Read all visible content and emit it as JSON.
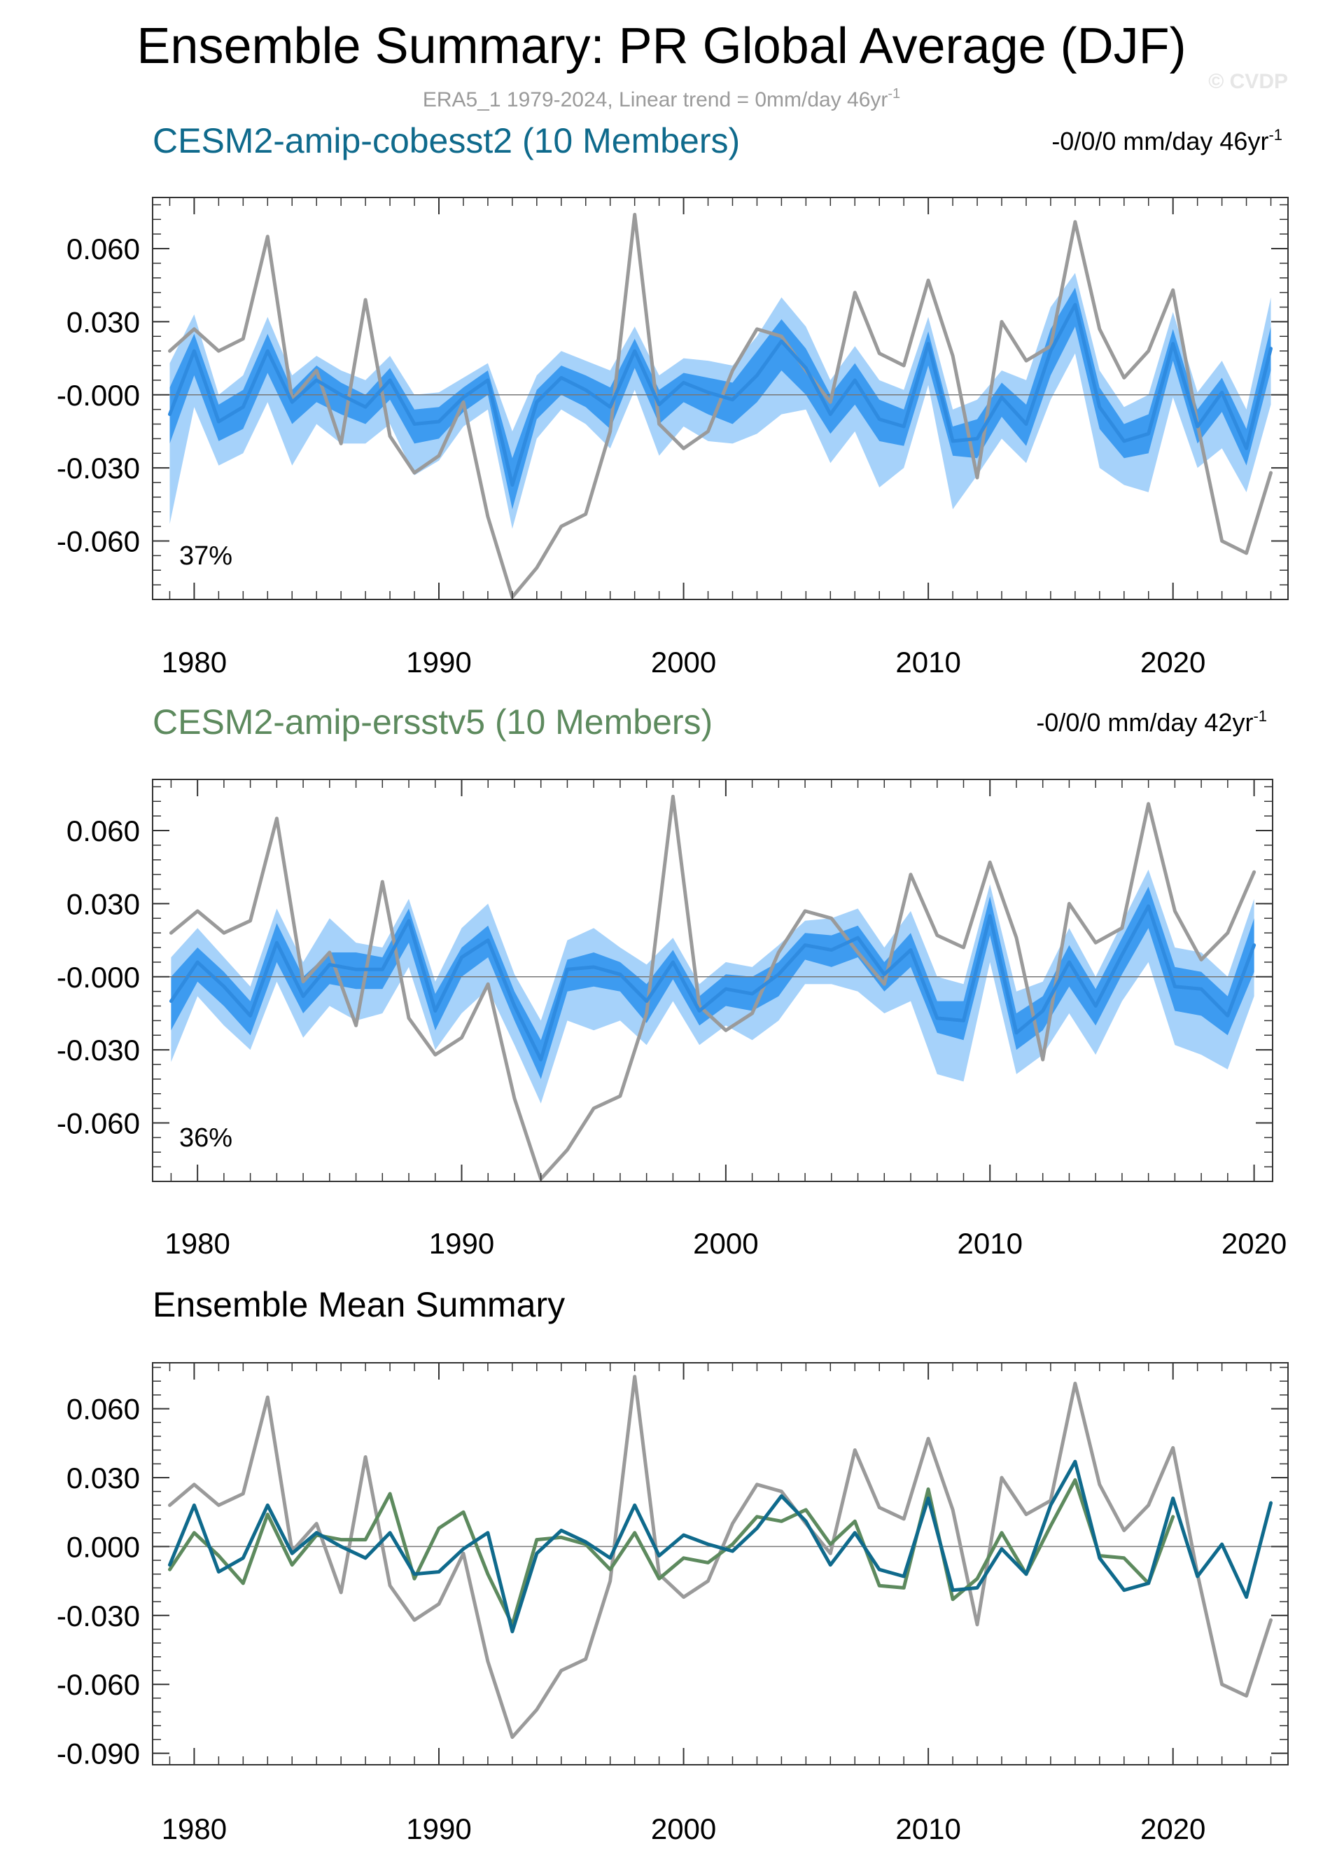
{
  "title": "Ensemble Summary: PR Global Average (DJF)",
  "subtitle": "ERA5_1 1979-2024, Linear trend = 0mm/day 46yr",
  "subtitle_sup": "-1",
  "watermark": "© CVDP",
  "colors": {
    "obs": "#9a9a9a",
    "ens_mean": "#2f8be0",
    "band_inner": "#3d9bf0",
    "band_outer": "#a6d2fa",
    "model1": "#0f6a8c",
    "model2": "#5d8a5e",
    "zero_line": "#777777",
    "axis": "#333333"
  },
  "chart_data": [
    {
      "type": "line",
      "panel": "ensemble",
      "title": "CESM2-amip-cobesst2 (10 Members)",
      "title_color": "#0f6a8c",
      "trend_label": "-0/0/0 mm/day 46yr",
      "trend_sup": "-1",
      "percentile_label": "37%",
      "ylim": [
        -0.084,
        0.081
      ],
      "yticks": [
        0.06,
        0.03,
        0.0,
        -0.03,
        -0.06
      ],
      "ytick_labels": [
        "0.060",
        "0.030",
        "-0.000",
        "-0.030",
        "-0.060"
      ],
      "xlim": [
        1978.3,
        2024.7
      ],
      "xticks": [
        1980,
        1990,
        2000,
        2010,
        2020
      ],
      "xtick_labels": [
        "1980",
        "1990",
        "2000",
        "2010",
        "2020"
      ],
      "x": [
        1979,
        1980,
        1981,
        1982,
        1983,
        1984,
        1985,
        1986,
        1987,
        1988,
        1989,
        1990,
        1991,
        1992,
        1993,
        1994,
        1995,
        1996,
        1997,
        1998,
        1999,
        2000,
        2001,
        2002,
        2003,
        2004,
        2005,
        2006,
        2007,
        2008,
        2009,
        2010,
        2011,
        2012,
        2013,
        2014,
        2015,
        2016,
        2017,
        2018,
        2019,
        2020,
        2021,
        2022,
        2023,
        2024
      ],
      "series": [
        {
          "name": "ERA5_1",
          "role": "obs",
          "values": [
            0.018,
            0.027,
            0.018,
            0.023,
            0.065,
            -0.002,
            0.01,
            -0.02,
            0.039,
            -0.017,
            -0.032,
            -0.025,
            -0.003,
            -0.05,
            -0.083,
            -0.071,
            -0.054,
            -0.049,
            -0.015,
            0.074,
            -0.012,
            -0.022,
            -0.015,
            0.01,
            0.027,
            0.024,
            0.01,
            -0.003,
            0.042,
            0.017,
            0.012,
            0.047,
            0.016,
            -0.034,
            0.03,
            0.014,
            0.02,
            0.071,
            0.027,
            0.007,
            0.018,
            0.043,
            -0.012,
            -0.06,
            -0.065,
            -0.032
          ]
        },
        {
          "name": "Ensemble Mean",
          "role": "ens_mean",
          "values": [
            -0.008,
            0.018,
            -0.011,
            -0.005,
            0.018,
            -0.003,
            0.006,
            0.0,
            -0.005,
            0.006,
            -0.012,
            -0.011,
            -0.001,
            0.006,
            -0.037,
            -0.003,
            0.007,
            0.002,
            -0.005,
            0.018,
            -0.004,
            0.005,
            0.001,
            -0.002,
            0.008,
            0.022,
            0.011,
            -0.008,
            0.006,
            -0.01,
            -0.013,
            0.021,
            -0.019,
            -0.018,
            -0.001,
            -0.012,
            0.018,
            0.037,
            -0.005,
            -0.019,
            -0.016,
            0.021,
            -0.013,
            0.001,
            -0.022,
            0.019
          ]
        },
        {
          "name": "Members Max",
          "role": "band_outer_hi",
          "values": [
            0.013,
            0.033,
            0.0,
            0.008,
            0.032,
            0.008,
            0.016,
            0.01,
            0.006,
            0.016,
            0.0,
            0.001,
            0.007,
            0.013,
            -0.015,
            0.008,
            0.018,
            0.014,
            0.01,
            0.028,
            0.008,
            0.015,
            0.014,
            0.012,
            0.024,
            0.04,
            0.028,
            0.006,
            0.02,
            0.006,
            0.002,
            0.032,
            -0.006,
            -0.002,
            0.01,
            0.006,
            0.036,
            0.05,
            0.01,
            -0.005,
            0.0,
            0.034,
            0.001,
            0.014,
            -0.006,
            0.04
          ]
        },
        {
          "name": "Inner Max",
          "role": "band_inner_hi",
          "values": [
            0.003,
            0.025,
            -0.004,
            0.002,
            0.025,
            0.002,
            0.012,
            0.005,
            0.0,
            0.011,
            -0.006,
            -0.005,
            0.003,
            0.01,
            -0.026,
            0.002,
            0.012,
            0.008,
            0.003,
            0.023,
            0.002,
            0.009,
            0.007,
            0.005,
            0.018,
            0.031,
            0.019,
            0.0,
            0.013,
            -0.002,
            -0.006,
            0.026,
            -0.013,
            -0.01,
            0.005,
            -0.004,
            0.027,
            0.044,
            0.003,
            -0.012,
            -0.008,
            0.027,
            -0.006,
            0.007,
            -0.014,
            0.028
          ]
        },
        {
          "name": "Inner Min",
          "role": "band_inner_lo",
          "values": [
            -0.02,
            0.008,
            -0.019,
            -0.014,
            0.009,
            -0.012,
            -0.003,
            -0.008,
            -0.012,
            -0.002,
            -0.02,
            -0.018,
            -0.007,
            0.0,
            -0.047,
            -0.01,
            0.0,
            -0.005,
            -0.014,
            0.011,
            -0.012,
            -0.003,
            -0.008,
            -0.012,
            -0.003,
            0.01,
            0.0,
            -0.016,
            -0.004,
            -0.019,
            -0.021,
            0.012,
            -0.025,
            -0.026,
            -0.009,
            -0.021,
            0.008,
            0.028,
            -0.014,
            -0.026,
            -0.024,
            0.014,
            -0.02,
            -0.007,
            -0.029,
            0.01
          ]
        },
        {
          "name": "Members Min",
          "role": "band_outer_lo",
          "values": [
            -0.053,
            -0.005,
            -0.029,
            -0.024,
            -0.003,
            -0.029,
            -0.012,
            -0.02,
            -0.02,
            -0.012,
            -0.033,
            -0.027,
            -0.013,
            -0.006,
            -0.055,
            -0.018,
            -0.006,
            -0.012,
            -0.022,
            0.002,
            -0.025,
            -0.013,
            -0.019,
            -0.02,
            -0.016,
            -0.008,
            -0.006,
            -0.028,
            -0.015,
            -0.038,
            -0.03,
            0.004,
            -0.047,
            -0.033,
            -0.018,
            -0.028,
            -0.002,
            0.017,
            -0.03,
            -0.037,
            -0.04,
            -0.001,
            -0.03,
            -0.022,
            -0.04,
            -0.004
          ]
        }
      ]
    },
    {
      "type": "line",
      "panel": "ensemble",
      "title": "CESM2-amip-ersstv5 (10 Members)",
      "title_color": "#5d8a5e",
      "trend_label": "-0/0/0 mm/day 42yr",
      "trend_sup": "-1",
      "percentile_label": "36%",
      "ylim": [
        -0.084,
        0.081
      ],
      "yticks": [
        0.06,
        0.03,
        0.0,
        -0.03,
        -0.06
      ],
      "ytick_labels": [
        "0.060",
        "0.030",
        "-0.000",
        "-0.030",
        "-0.060"
      ],
      "xlim": [
        1978.3,
        2020.7
      ],
      "xticks": [
        1980,
        1990,
        2000,
        2010,
        2020
      ],
      "xtick_labels": [
        "1980",
        "1990",
        "2000",
        "2010",
        "2020"
      ],
      "x": [
        1979,
        1980,
        1981,
        1982,
        1983,
        1984,
        1985,
        1986,
        1987,
        1988,
        1989,
        1990,
        1991,
        1992,
        1993,
        1994,
        1995,
        1996,
        1997,
        1998,
        1999,
        2000,
        2001,
        2002,
        2003,
        2004,
        2005,
        2006,
        2007,
        2008,
        2009,
        2010,
        2011,
        2012,
        2013,
        2014,
        2015,
        2016,
        2017,
        2018,
        2019,
        2020
      ],
      "series": [
        {
          "name": "ERA5_1",
          "role": "obs",
          "values": [
            0.018,
            0.027,
            0.018,
            0.023,
            0.065,
            -0.002,
            0.01,
            -0.02,
            0.039,
            -0.017,
            -0.032,
            -0.025,
            -0.003,
            -0.05,
            -0.083,
            -0.071,
            -0.054,
            -0.049,
            -0.015,
            0.074,
            -0.012,
            -0.022,
            -0.015,
            0.01,
            0.027,
            0.024,
            0.01,
            -0.003,
            0.042,
            0.017,
            0.012,
            0.047,
            0.016,
            -0.034,
            0.03,
            0.014,
            0.02,
            0.071,
            0.027,
            0.007,
            0.018,
            0.043
          ]
        },
        {
          "name": "Ensemble Mean",
          "role": "ens_mean",
          "values": [
            -0.01,
            0.006,
            -0.004,
            -0.016,
            0.014,
            -0.008,
            0.005,
            0.003,
            0.003,
            0.023,
            -0.014,
            0.008,
            0.015,
            -0.012,
            -0.034,
            0.003,
            0.004,
            0.001,
            -0.01,
            0.006,
            -0.014,
            -0.005,
            -0.007,
            0.001,
            0.013,
            0.011,
            0.016,
            0.001,
            0.011,
            -0.017,
            -0.018,
            0.025,
            -0.023,
            -0.014,
            0.006,
            -0.012,
            0.009,
            0.029,
            -0.004,
            -0.005,
            -0.016,
            0.013
          ]
        },
        {
          "name": "Members Max",
          "role": "band_outer_hi",
          "values": [
            0.008,
            0.02,
            0.008,
            -0.004,
            0.028,
            0.006,
            0.024,
            0.014,
            0.012,
            0.032,
            -0.002,
            0.02,
            0.03,
            0.001,
            -0.018,
            0.015,
            0.02,
            0.012,
            0.005,
            0.016,
            -0.003,
            0.006,
            0.004,
            0.013,
            0.023,
            0.024,
            0.028,
            0.012,
            0.027,
            0.0,
            -0.003,
            0.038,
            -0.006,
            -0.002,
            0.02,
            0.0,
            0.022,
            0.044,
            0.012,
            0.01,
            0.0,
            0.032
          ]
        },
        {
          "name": "Inner Max",
          "role": "band_inner_hi",
          "values": [
            0.0,
            0.012,
            0.002,
            -0.01,
            0.022,
            0.0,
            0.01,
            0.01,
            0.008,
            0.028,
            -0.007,
            0.012,
            0.021,
            -0.006,
            -0.026,
            0.007,
            0.01,
            0.006,
            -0.003,
            0.011,
            -0.008,
            0.001,
            0.0,
            0.006,
            0.018,
            0.017,
            0.021,
            0.006,
            0.018,
            -0.01,
            -0.01,
            0.033,
            -0.015,
            -0.008,
            0.013,
            -0.005,
            0.016,
            0.037,
            0.004,
            0.002,
            -0.008,
            0.024
          ]
        },
        {
          "name": "Inner Min",
          "role": "band_inner_lo",
          "values": [
            -0.022,
            -0.002,
            -0.012,
            -0.024,
            0.006,
            -0.015,
            -0.003,
            -0.005,
            -0.005,
            0.014,
            -0.022,
            0.0,
            0.008,
            -0.018,
            -0.042,
            -0.006,
            -0.004,
            -0.006,
            -0.019,
            -0.001,
            -0.02,
            -0.012,
            -0.014,
            -0.008,
            0.007,
            0.004,
            0.008,
            -0.006,
            0.004,
            -0.023,
            -0.026,
            0.017,
            -0.03,
            -0.022,
            -0.004,
            -0.02,
            0.001,
            0.02,
            -0.014,
            -0.016,
            -0.024,
            0.002
          ]
        },
        {
          "name": "Members Min",
          "role": "band_outer_lo",
          "values": [
            -0.035,
            -0.008,
            -0.02,
            -0.03,
            -0.002,
            -0.025,
            -0.012,
            -0.018,
            -0.015,
            0.004,
            -0.03,
            -0.015,
            -0.005,
            -0.028,
            -0.052,
            -0.018,
            -0.022,
            -0.018,
            -0.028,
            -0.01,
            -0.028,
            -0.02,
            -0.026,
            -0.018,
            -0.003,
            -0.003,
            -0.006,
            -0.015,
            -0.01,
            -0.04,
            -0.043,
            0.006,
            -0.04,
            -0.032,
            -0.015,
            -0.032,
            -0.01,
            0.006,
            -0.028,
            -0.032,
            -0.038,
            -0.008
          ]
        }
      ]
    },
    {
      "type": "line",
      "panel": "mean_summary",
      "title": "Ensemble Mean Summary",
      "title_color": "#000000",
      "ylim": [
        -0.095,
        0.08
      ],
      "yticks": [
        0.06,
        0.03,
        0.0,
        -0.03,
        -0.06,
        -0.09
      ],
      "ytick_labels": [
        "0.060",
        "0.030",
        "0.000",
        "-0.030",
        "-0.060",
        "-0.090"
      ],
      "xlim": [
        1978.3,
        2024.7
      ],
      "xticks": [
        1980,
        1990,
        2000,
        2010,
        2020
      ],
      "xtick_labels": [
        "1980",
        "1990",
        "2000",
        "2010",
        "2020"
      ],
      "series": [
        {
          "name": "ERA5_1",
          "role": "obs",
          "x_start": 1979,
          "values": [
            0.018,
            0.027,
            0.018,
            0.023,
            0.065,
            -0.002,
            0.01,
            -0.02,
            0.039,
            -0.017,
            -0.032,
            -0.025,
            -0.003,
            -0.05,
            -0.083,
            -0.071,
            -0.054,
            -0.049,
            -0.015,
            0.074,
            -0.012,
            -0.022,
            -0.015,
            0.01,
            0.027,
            0.024,
            0.01,
            -0.003,
            0.042,
            0.017,
            0.012,
            0.047,
            0.016,
            -0.034,
            0.03,
            0.014,
            0.02,
            0.071,
            0.027,
            0.007,
            0.018,
            0.043,
            -0.012,
            -0.06,
            -0.065,
            -0.032
          ]
        },
        {
          "name": "CESM2-amip-ersstv5",
          "role": "model2",
          "x_start": 1979,
          "values": [
            -0.01,
            0.006,
            -0.004,
            -0.016,
            0.014,
            -0.008,
            0.005,
            0.003,
            0.003,
            0.023,
            -0.014,
            0.008,
            0.015,
            -0.012,
            -0.034,
            0.003,
            0.004,
            0.001,
            -0.01,
            0.006,
            -0.014,
            -0.005,
            -0.007,
            0.001,
            0.013,
            0.011,
            0.016,
            0.001,
            0.011,
            -0.017,
            -0.018,
            0.025,
            -0.023,
            -0.014,
            0.006,
            -0.012,
            0.009,
            0.029,
            -0.004,
            -0.005,
            -0.016,
            0.013
          ]
        },
        {
          "name": "CESM2-amip-cobesst2",
          "role": "model1",
          "x_start": 1979,
          "values": [
            -0.008,
            0.018,
            -0.011,
            -0.005,
            0.018,
            -0.003,
            0.006,
            0.0,
            -0.005,
            0.006,
            -0.012,
            -0.011,
            -0.001,
            0.006,
            -0.037,
            -0.003,
            0.007,
            0.002,
            -0.005,
            0.018,
            -0.004,
            0.005,
            0.001,
            -0.002,
            0.008,
            0.022,
            0.011,
            -0.008,
            0.006,
            -0.01,
            -0.013,
            0.021,
            -0.019,
            -0.018,
            -0.001,
            -0.012,
            0.018,
            0.037,
            -0.005,
            -0.019,
            -0.016,
            0.021,
            -0.013,
            0.001,
            -0.022,
            0.019
          ]
        }
      ]
    }
  ]
}
